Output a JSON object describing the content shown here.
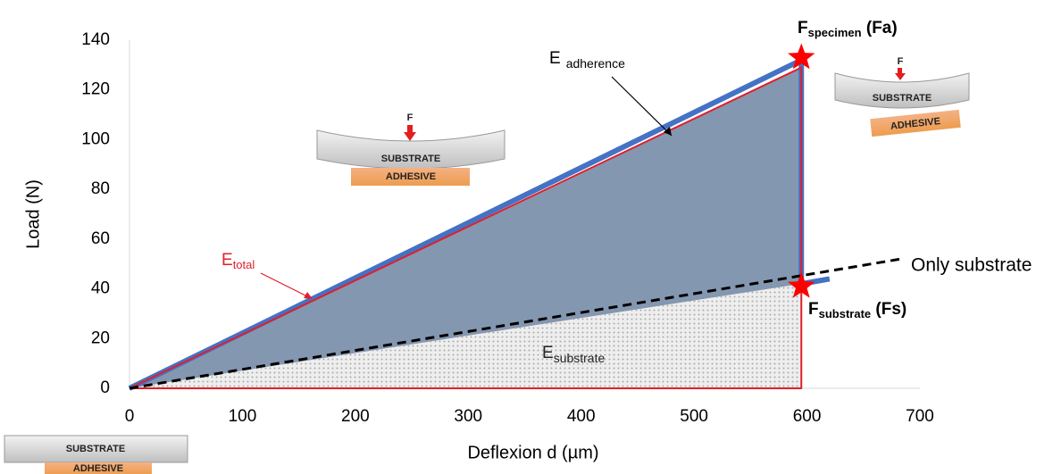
{
  "chart_data": {
    "type": "line",
    "x_label": "Deflexion d (µm)",
    "y_label": "Load (N)",
    "xlim": [
      0,
      700
    ],
    "ylim": [
      0,
      140
    ],
    "xticks": [
      0,
      100,
      200,
      300,
      400,
      500,
      600,
      700
    ],
    "yticks": [
      0,
      20,
      40,
      60,
      80,
      100,
      120,
      140
    ],
    "grid": false,
    "series": [
      {
        "style": "area",
        "color": "#8497b0",
        "x": [
          0,
          595,
          595
        ],
        "values": [
          0,
          129,
          42
        ]
      },
      {
        "style": "dots",
        "color": "#d9d9d9",
        "x": [
          0,
          595,
          595
        ],
        "values": [
          0,
          42,
          0
        ]
      },
      {
        "style": "line",
        "color": "#4472c4",
        "width": 6,
        "x": [
          0,
          595,
          595,
          620
        ],
        "values": [
          0,
          132,
          42,
          44
        ]
      },
      {
        "style": "line",
        "color": "#e0202a",
        "width": 2,
        "x": [
          0,
          595,
          595,
          0
        ],
        "values": [
          0,
          129,
          0,
          0
        ]
      },
      {
        "style": "dashed",
        "color": "#000000",
        "width": 3,
        "x": [
          0,
          683
        ],
        "values": [
          0,
          52
        ]
      }
    ],
    "points": {
      "color": "#ff0000",
      "x": [
        595,
        595
      ],
      "values": [
        133,
        41
      ]
    },
    "annotations": {
      "fa": {
        "main": "F",
        "sub": "specimen",
        "tail": " (Fa)"
      },
      "fs": {
        "main": "F",
        "sub": "substrate",
        "tail": " (Fs)"
      },
      "e_adh": {
        "main": "E",
        "sub": "adherence"
      },
      "e_tot": {
        "main": "E",
        "sub": "total"
      },
      "e_sub": {
        "main": "E",
        "sub": "substrate"
      },
      "only": "Only substrate"
    },
    "diagrams": [
      {
        "force": "F",
        "substrate": "SUBSTRATE",
        "adhesive": "ADHESIVE"
      },
      {
        "force": "F",
        "substrate": "SUBSTRATE",
        "adhesive": "ADHESIVE"
      },
      {
        "substrate": "SUBSTRATE",
        "adhesive": "ADHESIVE"
      }
    ]
  }
}
